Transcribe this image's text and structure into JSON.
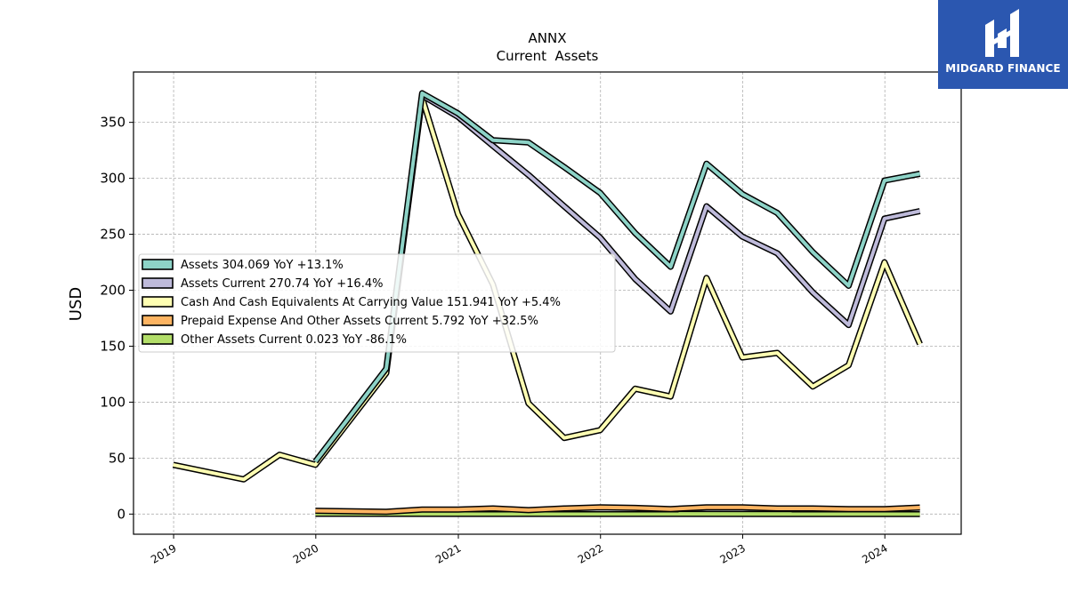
{
  "chart_data": {
    "type": "line",
    "title": "ANNX",
    "subtitle": "Current  Assets",
    "ylabel": "USD",
    "xlabel": "",
    "ylim": [
      -18,
      395
    ],
    "x_ticks": [
      "2019",
      "2020",
      "2021",
      "2022",
      "2023",
      "2024"
    ],
    "y_ticks": [
      0,
      50,
      100,
      150,
      200,
      250,
      300,
      350
    ],
    "grid": true,
    "legend_position": "center-left",
    "series": [
      {
        "name": "Assets  304.069 YoY +13.1%",
        "color": "#8dd3c7",
        "x": [
          "2019-12-31",
          "2020-06-30",
          "2020-09-30",
          "2020-12-31",
          "2021-03-31",
          "2021-06-30",
          "2021-09-30",
          "2021-12-31",
          "2022-03-31",
          "2022-06-30",
          "2022-09-30",
          "2022-12-31",
          "2023-03-31",
          "2023-06-30",
          "2023-09-30",
          "2023-12-31",
          "2024-03-31"
        ],
        "y": [
          47,
          130,
          376,
          358,
          334,
          332,
          310,
          287,
          251,
          221,
          313,
          286,
          269,
          234,
          204,
          298,
          304.069
        ]
      },
      {
        "name": "Assets Current  270.74 YoY +16.4%",
        "color": "#bebada",
        "x": [
          "2020-09-30",
          "2020-12-31",
          "2021-03-31",
          "2021-06-30",
          "2021-09-30",
          "2021-12-31",
          "2022-03-31",
          "2022-06-30",
          "2022-09-30",
          "2022-12-31",
          "2023-03-31",
          "2023-06-30",
          "2023-09-30",
          "2023-12-31",
          "2024-03-31"
        ],
        "y": [
          374,
          355,
          329,
          303,
          275,
          247,
          210,
          181,
          275,
          248,
          233,
          198,
          169,
          264,
          270.74
        ]
      },
      {
        "name": "Cash And Cash Equivalents At Carrying Value  151.941 YoY +5.4%",
        "color": "#ffffb3",
        "x": [
          "2018-12-31",
          "2019-06-30",
          "2019-09-30",
          "2019-12-31",
          "2020-06-30",
          "2020-09-30",
          "2020-12-31",
          "2021-03-31",
          "2021-06-30",
          "2021-09-30",
          "2021-12-31",
          "2022-03-31",
          "2022-06-30",
          "2022-09-30",
          "2022-12-31",
          "2023-03-31",
          "2023-06-30",
          "2023-09-30",
          "2023-12-31",
          "2024-03-31"
        ],
        "y": [
          44,
          31,
          53,
          44,
          126,
          372,
          268,
          205,
          99,
          68,
          75,
          112,
          105,
          211,
          140,
          144,
          114,
          133,
          225,
          151.941
        ]
      },
      {
        "name": "Prepaid Expense And Other Assets Current  5.792 YoY +32.5%",
        "color": "#fdb462",
        "x": [
          "2019-12-31",
          "2020-06-30",
          "2020-09-30",
          "2020-12-31",
          "2021-03-31",
          "2021-06-30",
          "2021-09-30",
          "2021-12-31",
          "2022-03-31",
          "2022-06-30",
          "2022-09-30",
          "2022-12-31",
          "2023-03-31",
          "2023-06-30",
          "2023-09-30",
          "2023-12-31",
          "2024-03-31"
        ],
        "y": [
          3,
          2,
          4,
          4,
          5,
          3.5,
          5,
          6,
          5.5,
          4.5,
          6,
          6,
          5,
          5,
          4.5,
          4.5,
          5.792
        ]
      },
      {
        "name": "Other Assets Current  0.023 YoY -86.1%",
        "color": "#b3de69",
        "x": [
          "2019-12-31",
          "2024-03-31"
        ],
        "y": [
          0.3,
          0.023
        ]
      }
    ]
  },
  "brand": {
    "name": "MIDGARD FINANCE",
    "bg_color": "#2b57b0"
  }
}
